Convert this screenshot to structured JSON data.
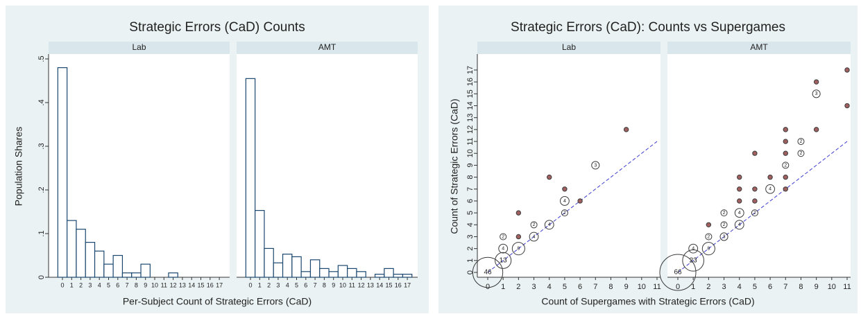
{
  "chart_data": [
    {
      "type": "bar",
      "title": "Strategic Errors (CaD) Counts",
      "x_label": "Per-Subject Count of Strategic Errors (CaD)",
      "y_label": "Population Shares",
      "categories": [
        0,
        1,
        2,
        3,
        4,
        5,
        6,
        7,
        8,
        9,
        10,
        11,
        12,
        13,
        14,
        15,
        16,
        17
      ],
      "panels": [
        {
          "name": "Lab",
          "values": [
            0.48,
            0.13,
            0.11,
            0.08,
            0.06,
            0.03,
            0.05,
            0.01,
            0.01,
            0.03,
            0,
            0,
            0.01,
            0,
            0,
            0,
            0,
            0
          ]
        },
        {
          "name": "AMT",
          "values": [
            0.455,
            0.153,
            0.066,
            0.033,
            0.053,
            0.047,
            0.013,
            0.04,
            0.02,
            0.013,
            0.027,
            0.02,
            0.013,
            0,
            0.007,
            0.02,
            0.007,
            0.007
          ]
        }
      ],
      "color": "#1a476f",
      "ylim": [
        0,
        0.5
      ],
      "yticks": [
        0,
        {
          "value": 0.1,
          "label": ".1"
        },
        {
          "value": 0.2,
          "label": ".2"
        },
        {
          "value": 0.3,
          "label": ".3"
        },
        {
          "value": 0.4,
          "label": ".4"
        },
        {
          "value": 0.5,
          "label": ".5"
        }
      ]
    },
    {
      "type": "scatter",
      "title": "Strategic Errors (CaD): Counts vs Supergames",
      "x_label": "Count of Supergames with Strategic Errors (CaD)",
      "y_label": "Count of Strategic Errors (CaD)",
      "panels": [
        {
          "name": "Lab",
          "x": [
            0,
            1,
            1,
            1,
            2,
            2,
            2,
            3,
            3,
            4,
            4,
            5,
            5,
            5,
            6,
            7,
            9
          ],
          "y": [
            0,
            1,
            2,
            3,
            2,
            3,
            5,
            3,
            4,
            4,
            8,
            5,
            6,
            7,
            6,
            9,
            12
          ],
          "size": [
            46,
            13,
            4,
            2,
            8,
            1,
            1,
            4,
            2,
            4,
            1,
            2,
            4,
            1,
            1,
            3,
            1
          ]
        },
        {
          "name": "AMT",
          "x": [
            0,
            1,
            1,
            2,
            2,
            2,
            3,
            3,
            3,
            4,
            4,
            4,
            4,
            4,
            5,
            5,
            5,
            5,
            6,
            6,
            7,
            7,
            7,
            7,
            7,
            7,
            8,
            8,
            9,
            9,
            9,
            11,
            11
          ],
          "y": [
            0,
            1,
            2,
            2,
            3,
            4,
            3,
            4,
            5,
            4,
            5,
            6,
            7,
            8,
            5,
            6,
            7,
            10,
            7,
            8,
            7,
            8,
            9,
            10,
            11,
            12,
            10,
            11,
            12,
            15,
            16,
            14,
            17
          ],
          "size": [
            66,
            23,
            4,
            8,
            2,
            1,
            3,
            2,
            2,
            4,
            4,
            1,
            1,
            1,
            2,
            1,
            1,
            1,
            4,
            1,
            1,
            1,
            2,
            1,
            1,
            1,
            2,
            2,
            1,
            3,
            1,
            1,
            1
          ]
        }
      ],
      "color": "#3b3b3b",
      "label_color": "#8b2a8b",
      "line_color": "#3c3cd0",
      "reference_line": {
        "x": [
          0,
          11
        ],
        "y": [
          0,
          11
        ]
      },
      "xlim": [
        0,
        11
      ],
      "xticks": [
        0,
        1,
        2,
        3,
        4,
        5,
        6,
        7,
        8,
        9,
        10,
        11
      ],
      "ylim": [
        0,
        17
      ],
      "yticks": [
        0,
        1,
        2,
        3,
        4,
        5,
        6,
        7,
        8,
        9,
        10,
        11,
        12,
        13,
        14,
        15,
        16,
        17
      ]
    }
  ]
}
